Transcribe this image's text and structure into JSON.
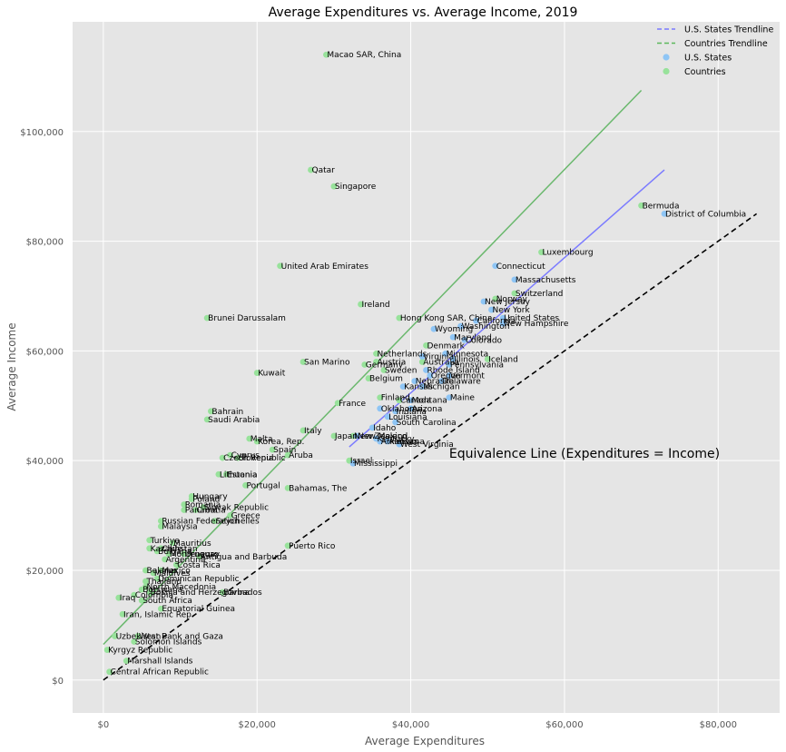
{
  "chart_data": {
    "type": "scatter",
    "title": "Average Expenditures vs. Average Income, 2019",
    "xlabel": "Average Expenditures",
    "ylabel": "Average Income",
    "xlim": [
      -4000,
      88000
    ],
    "ylim": [
      -6000,
      120000
    ],
    "xticks": [
      0,
      20000,
      40000,
      60000,
      80000
    ],
    "xtick_labels": [
      "$0",
      "$20,000",
      "$40,000",
      "$60,000",
      "$80,000"
    ],
    "yticks": [
      0,
      20000,
      40000,
      60000,
      80000,
      100000
    ],
    "ytick_labels": [
      "$0",
      "$20,000",
      "$40,000",
      "$60,000",
      "$80,000",
      "$100,000"
    ],
    "grid": true,
    "legend_position": "top-right",
    "legend": [
      {
        "label": "U.S. States Trendline",
        "kind": "dashed-line",
        "color": "#7b7bff"
      },
      {
        "label": "Countries Trendline",
        "kind": "dashed-line",
        "color": "#5cb85c"
      },
      {
        "label": "U.S. States",
        "kind": "marker",
        "color": "#8ec5f5"
      },
      {
        "label": "Countries",
        "kind": "marker",
        "color": "#98e29b"
      }
    ],
    "annotation": "Equivalence Line (Expenditures = Income)",
    "annotation_at": [
      45000,
      40500
    ],
    "equivalence_line": {
      "x": [
        0,
        85000
      ],
      "y": [
        0,
        85000
      ],
      "color": "#000000"
    },
    "trendlines": [
      {
        "name": "U.S. States Trendline",
        "color": "#7b7bff",
        "x": [
          32000,
          73000
        ],
        "y": [
          42500,
          93000
        ]
      },
      {
        "name": "Countries Trendline",
        "color": "#6ab86d",
        "x": [
          0,
          70000
        ],
        "y": [
          6500,
          107500
        ]
      }
    ],
    "series": [
      {
        "name": "U.S. States",
        "color": "#8ec5f5",
        "points": [
          {
            "label": "District of Columbia",
            "x": 73000,
            "y": 85000
          },
          {
            "label": "Connecticut",
            "x": 51000,
            "y": 75500
          },
          {
            "label": "Massachusetts",
            "x": 53500,
            "y": 73000
          },
          {
            "label": "New Jersey",
            "x": 49500,
            "y": 69000
          },
          {
            "label": "New York",
            "x": 50500,
            "y": 67500
          },
          {
            "label": "United States",
            "x": 52000,
            "y": 66000
          },
          {
            "label": "California",
            "x": 48500,
            "y": 65500
          },
          {
            "label": "New Hampshire",
            "x": 52000,
            "y": 65000
          },
          {
            "label": "Washington",
            "x": 46500,
            "y": 64500
          },
          {
            "label": "Wyoming",
            "x": 43000,
            "y": 64000
          },
          {
            "label": "Maryland",
            "x": 45500,
            "y": 62500
          },
          {
            "label": "Colorado",
            "x": 47000,
            "y": 62000
          },
          {
            "label": "Minnesota",
            "x": 44500,
            "y": 59500
          },
          {
            "label": "Virginia",
            "x": 41500,
            "y": 59000
          },
          {
            "label": "Illinois",
            "x": 45500,
            "y": 58500
          },
          {
            "label": "Pennsylvania",
            "x": 45000,
            "y": 57500
          },
          {
            "label": "Rhode Island",
            "x": 42000,
            "y": 56500
          },
          {
            "label": "Vermont",
            "x": 45000,
            "y": 55500
          },
          {
            "label": "Oregon",
            "x": 42500,
            "y": 55500
          },
          {
            "label": "Nebraska",
            "x": 40500,
            "y": 54500
          },
          {
            "label": "Delaware",
            "x": 44000,
            "y": 54500
          },
          {
            "label": "Kansas",
            "x": 39000,
            "y": 53500
          },
          {
            "label": "Michigan",
            "x": 41500,
            "y": 53500
          },
          {
            "label": "Maine",
            "x": 45000,
            "y": 51500
          },
          {
            "label": "Montana",
            "x": 40000,
            "y": 51000
          },
          {
            "label": "Oklahoma",
            "x": 36000,
            "y": 49500
          },
          {
            "label": "Indiana",
            "x": 38000,
            "y": 49000
          },
          {
            "label": "Arizona",
            "x": 40000,
            "y": 49500
          },
          {
            "label": "Louisiana",
            "x": 37000,
            "y": 48000
          },
          {
            "label": "South Carolina",
            "x": 38000,
            "y": 47000
          },
          {
            "label": "Idaho",
            "x": 35000,
            "y": 46000
          },
          {
            "label": "New Mexico",
            "x": 33000,
            "y": 44500
          },
          {
            "label": "Kentucky",
            "x": 35500,
            "y": 44000
          },
          {
            "label": "Arkansas",
            "x": 36000,
            "y": 43500
          },
          {
            "label": "Alabama",
            "x": 37000,
            "y": 43500
          },
          {
            "label": "West Virginia",
            "x": 38500,
            "y": 43000
          },
          {
            "label": "Mississippi",
            "x": 32500,
            "y": 39500
          }
        ]
      },
      {
        "name": "Countries",
        "color": "#98e29b",
        "points": [
          {
            "label": "Macao SAR, China",
            "x": 29000,
            "y": 114000
          },
          {
            "label": "Qatar",
            "x": 27000,
            "y": 93000
          },
          {
            "label": "Singapore",
            "x": 30000,
            "y": 90000
          },
          {
            "label": "Bermuda",
            "x": 70000,
            "y": 86500
          },
          {
            "label": "Luxembourg",
            "x": 57000,
            "y": 78000
          },
          {
            "label": "United Arab Emirates",
            "x": 23000,
            "y": 75500
          },
          {
            "label": "Switzerland",
            "x": 53500,
            "y": 70500
          },
          {
            "label": "Norway",
            "x": 51000,
            "y": 69500
          },
          {
            "label": "Ireland",
            "x": 33500,
            "y": 68500
          },
          {
            "label": "Brunei Darussalam",
            "x": 13500,
            "y": 66000
          },
          {
            "label": "Hong Kong SAR, China",
            "x": 38500,
            "y": 66000
          },
          {
            "label": "Denmark",
            "x": 42000,
            "y": 61000
          },
          {
            "label": "Iceland",
            "x": 50000,
            "y": 58500
          },
          {
            "label": "Netherlands",
            "x": 35500,
            "y": 59500
          },
          {
            "label": "Australia",
            "x": 41500,
            "y": 58000
          },
          {
            "label": "Austria",
            "x": 35500,
            "y": 58000
          },
          {
            "label": "San Marino",
            "x": 26000,
            "y": 58000
          },
          {
            "label": "Germany",
            "x": 34000,
            "y": 57500
          },
          {
            "label": "Sweden",
            "x": 36500,
            "y": 56500
          },
          {
            "label": "Kuwait",
            "x": 20000,
            "y": 56000
          },
          {
            "label": "Belgium",
            "x": 34500,
            "y": 55000
          },
          {
            "label": "Finland",
            "x": 36000,
            "y": 51500
          },
          {
            "label": "Canada",
            "x": 38500,
            "y": 51000
          },
          {
            "label": "France",
            "x": 30500,
            "y": 50500
          },
          {
            "label": "Bahrain",
            "x": 14000,
            "y": 49000
          },
          {
            "label": "Saudi Arabia",
            "x": 13500,
            "y": 47500
          },
          {
            "label": "Italy",
            "x": 26000,
            "y": 45500
          },
          {
            "label": "Japan",
            "x": 30000,
            "y": 44500
          },
          {
            "label": "New Zealand",
            "x": 32500,
            "y": 44500
          },
          {
            "label": "Malta",
            "x": 19000,
            "y": 44000
          },
          {
            "label": "Korea, Rep.",
            "x": 20000,
            "y": 43500
          },
          {
            "label": "Spain",
            "x": 22000,
            "y": 42000
          },
          {
            "label": "Aruba",
            "x": 24000,
            "y": 41000
          },
          {
            "label": "Cyprus",
            "x": 16500,
            "y": 41000
          },
          {
            "label": "Slovenia",
            "x": 17500,
            "y": 40500
          },
          {
            "label": "Czech Republic",
            "x": 15500,
            "y": 40500
          },
          {
            "label": "Israel",
            "x": 32000,
            "y": 40000
          },
          {
            "label": "Lithuania",
            "x": 15000,
            "y": 37500
          },
          {
            "label": "Estonia",
            "x": 16000,
            "y": 37500
          },
          {
            "label": "Portugal",
            "x": 18500,
            "y": 35500
          },
          {
            "label": "Bahamas, The",
            "x": 24000,
            "y": 35000
          },
          {
            "label": "Hungary",
            "x": 11500,
            "y": 33500
          },
          {
            "label": "Poland",
            "x": 11500,
            "y": 33000
          },
          {
            "label": "Romania",
            "x": 10500,
            "y": 32000
          },
          {
            "label": "Slovak Republic",
            "x": 13000,
            "y": 31500
          },
          {
            "label": "Croatia",
            "x": 12000,
            "y": 31000
          },
          {
            "label": "Panama",
            "x": 10500,
            "y": 31000
          },
          {
            "label": "Greece",
            "x": 16500,
            "y": 30000
          },
          {
            "label": "Russian Federation",
            "x": 7500,
            "y": 29000
          },
          {
            "label": "Seychelles",
            "x": 14500,
            "y": 29000
          },
          {
            "label": "Malaysia",
            "x": 7500,
            "y": 28000
          },
          {
            "label": "Turkiye",
            "x": 6000,
            "y": 25500
          },
          {
            "label": "Mauritius",
            "x": 9000,
            "y": 25000
          },
          {
            "label": "Kazakhstan",
            "x": 6000,
            "y": 24000
          },
          {
            "label": "Chile",
            "x": 7500,
            "y": 24000
          },
          {
            "label": "Bulgaria",
            "x": 7000,
            "y": 23500
          },
          {
            "label": "Montenegro",
            "x": 8500,
            "y": 23000
          },
          {
            "label": "Uruguay",
            "x": 10500,
            "y": 23000
          },
          {
            "label": "Antigua and Barbuda",
            "x": 12500,
            "y": 22500
          },
          {
            "label": "Argentina",
            "x": 8000,
            "y": 22000
          },
          {
            "label": "Costa Rica",
            "x": 9500,
            "y": 21000
          },
          {
            "label": "Puerto Rico",
            "x": 24000,
            "y": 24500
          },
          {
            "label": "Belarus",
            "x": 5500,
            "y": 20000
          },
          {
            "label": "Mexico",
            "x": 7500,
            "y": 20000
          },
          {
            "label": "Maldives",
            "x": 6500,
            "y": 19500
          },
          {
            "label": "Dominican Republic",
            "x": 7000,
            "y": 18500
          },
          {
            "label": "Thailand",
            "x": 5500,
            "y": 18000
          },
          {
            "label": "North Macedonia",
            "x": 5500,
            "y": 17000
          },
          {
            "label": "Botswana",
            "x": 5000,
            "y": 16500
          },
          {
            "label": "Bosnia and Herzegovina",
            "x": 6000,
            "y": 16000
          },
          {
            "label": "Barbados",
            "x": 15500,
            "y": 16000
          },
          {
            "label": "Iraq",
            "x": 2000,
            "y": 15000
          },
          {
            "label": "Colombia",
            "x": 4000,
            "y": 15500
          },
          {
            "label": "South Africa",
            "x": 5000,
            "y": 14500
          },
          {
            "label": "Equatorial Guinea",
            "x": 7500,
            "y": 13000
          },
          {
            "label": "Iran, Islamic Rep.",
            "x": 2500,
            "y": 12000
          },
          {
            "label": "Uzbekistan",
            "x": 1500,
            "y": 8000
          },
          {
            "label": "West Bank and Gaza",
            "x": 4500,
            "y": 8000
          },
          {
            "label": "Solomon Islands",
            "x": 4000,
            "y": 7000
          },
          {
            "label": "Kyrgyz Republic",
            "x": 500,
            "y": 5500
          },
          {
            "label": "Marshall Islands",
            "x": 3000,
            "y": 3500
          },
          {
            "label": "Central African Republic",
            "x": 800,
            "y": 1500
          }
        ]
      }
    ]
  }
}
